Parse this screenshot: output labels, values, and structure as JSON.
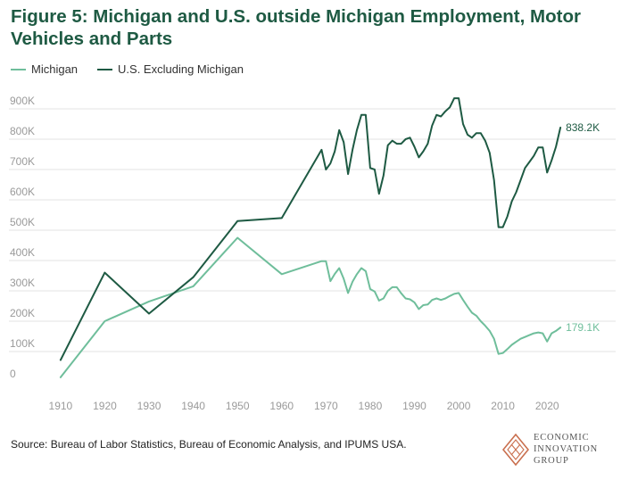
{
  "title": "Figure 5: Michigan and U.S. outside Michigan Employment, Motor Vehicles and Parts",
  "source": "Source: Bureau of Labor Statistics, Bureau of Economic Analysis, and IPUMS USA.",
  "logo": {
    "line1": "ECONOMIC",
    "line2": "INNOVATION",
    "line3": "GROUP",
    "icon": "eig-diamond-logo-icon",
    "color": "#c96f4e"
  },
  "colors": {
    "title": "#1e5a43",
    "michigan": "#6fbe9b",
    "us": "#1e5a43",
    "grid": "#e3e3e3",
    "tick": "#9a9a9a"
  },
  "chart_data": {
    "type": "line",
    "title": "Figure 5: Michigan and U.S. outside Michigan Employment, Motor Vehicles and Parts",
    "xlabel": "",
    "ylabel": "",
    "xlim": [
      1907,
      2025
    ],
    "ylim": [
      0,
      900000
    ],
    "x_ticks": [
      1910,
      1920,
      1930,
      1940,
      1950,
      1960,
      1970,
      1980,
      1990,
      2000,
      2010,
      2020
    ],
    "y_ticks": [
      0,
      100000,
      200000,
      300000,
      400000,
      500000,
      600000,
      700000,
      800000,
      900000
    ],
    "y_tick_labels": [
      "0",
      "100K",
      "200K",
      "300K",
      "400K",
      "500K",
      "600K",
      "700K",
      "800K",
      "900K"
    ],
    "grid": true,
    "legend_position": "top-left",
    "series": [
      {
        "name": "Michigan",
        "color": "#6fbe9b",
        "end_label": "179.1K",
        "points": [
          [
            1910,
            15000
          ],
          [
            1920,
            200000
          ],
          [
            1930,
            265000
          ],
          [
            1940,
            315000
          ],
          [
            1950,
            475000
          ],
          [
            1960,
            355000
          ],
          [
            1969,
            398000
          ],
          [
            1970,
            398000
          ],
          [
            1971,
            332000
          ],
          [
            1972,
            356000
          ],
          [
            1973,
            375000
          ],
          [
            1974,
            340000
          ],
          [
            1975,
            293000
          ],
          [
            1976,
            330000
          ],
          [
            1977,
            355000
          ],
          [
            1978,
            375000
          ],
          [
            1979,
            365000
          ],
          [
            1980,
            306000
          ],
          [
            1981,
            298000
          ],
          [
            1982,
            268000
          ],
          [
            1983,
            275000
          ],
          [
            1984,
            300000
          ],
          [
            1985,
            312000
          ],
          [
            1986,
            312000
          ],
          [
            1987,
            292000
          ],
          [
            1988,
            275000
          ],
          [
            1989,
            272000
          ],
          [
            1990,
            262000
          ],
          [
            1991,
            240000
          ],
          [
            1992,
            253000
          ],
          [
            1993,
            255000
          ],
          [
            1994,
            270000
          ],
          [
            1995,
            275000
          ],
          [
            1996,
            270000
          ],
          [
            1997,
            275000
          ],
          [
            1998,
            283000
          ],
          [
            1999,
            290000
          ],
          [
            2000,
            293000
          ],
          [
            2001,
            270000
          ],
          [
            2002,
            248000
          ],
          [
            2003,
            228000
          ],
          [
            2004,
            218000
          ],
          [
            2005,
            200000
          ],
          [
            2006,
            185000
          ],
          [
            2007,
            168000
          ],
          [
            2008,
            142000
          ],
          [
            2009,
            92000
          ],
          [
            2010,
            95000
          ],
          [
            2011,
            108000
          ],
          [
            2012,
            122000
          ],
          [
            2013,
            132000
          ],
          [
            2014,
            142000
          ],
          [
            2015,
            148000
          ],
          [
            2016,
            154000
          ],
          [
            2017,
            160000
          ],
          [
            2018,
            163000
          ],
          [
            2019,
            160000
          ],
          [
            2020,
            133000
          ],
          [
            2021,
            160000
          ],
          [
            2022,
            168000
          ],
          [
            2023,
            179100
          ]
        ]
      },
      {
        "name": "U.S. Excluding Michigan",
        "color": "#1e5a43",
        "end_label": "838.2K",
        "points": [
          [
            1910,
            72000
          ],
          [
            1920,
            360000
          ],
          [
            1930,
            225000
          ],
          [
            1940,
            345000
          ],
          [
            1950,
            530000
          ],
          [
            1960,
            540000
          ],
          [
            1969,
            765000
          ],
          [
            1970,
            700000
          ],
          [
            1971,
            720000
          ],
          [
            1972,
            760000
          ],
          [
            1973,
            830000
          ],
          [
            1974,
            790000
          ],
          [
            1975,
            685000
          ],
          [
            1976,
            765000
          ],
          [
            1977,
            830000
          ],
          [
            1978,
            880000
          ],
          [
            1979,
            880000
          ],
          [
            1980,
            705000
          ],
          [
            1981,
            700000
          ],
          [
            1982,
            620000
          ],
          [
            1983,
            680000
          ],
          [
            1984,
            780000
          ],
          [
            1985,
            795000
          ],
          [
            1986,
            785000
          ],
          [
            1987,
            785000
          ],
          [
            1988,
            800000
          ],
          [
            1989,
            805000
          ],
          [
            1990,
            775000
          ],
          [
            1991,
            740000
          ],
          [
            1992,
            760000
          ],
          [
            1993,
            785000
          ],
          [
            1994,
            845000
          ],
          [
            1995,
            880000
          ],
          [
            1996,
            875000
          ],
          [
            1997,
            892000
          ],
          [
            1998,
            905000
          ],
          [
            1999,
            935000
          ],
          [
            2000,
            935000
          ],
          [
            2001,
            850000
          ],
          [
            2002,
            815000
          ],
          [
            2003,
            805000
          ],
          [
            2004,
            820000
          ],
          [
            2005,
            820000
          ],
          [
            2006,
            795000
          ],
          [
            2007,
            755000
          ],
          [
            2008,
            665000
          ],
          [
            2009,
            510000
          ],
          [
            2010,
            510000
          ],
          [
            2011,
            545000
          ],
          [
            2012,
            595000
          ],
          [
            2013,
            625000
          ],
          [
            2014,
            665000
          ],
          [
            2015,
            705000
          ],
          [
            2016,
            725000
          ],
          [
            2017,
            745000
          ],
          [
            2018,
            773000
          ],
          [
            2019,
            773000
          ],
          [
            2020,
            690000
          ],
          [
            2021,
            730000
          ],
          [
            2022,
            775000
          ],
          [
            2023,
            838200
          ]
        ]
      }
    ]
  }
}
